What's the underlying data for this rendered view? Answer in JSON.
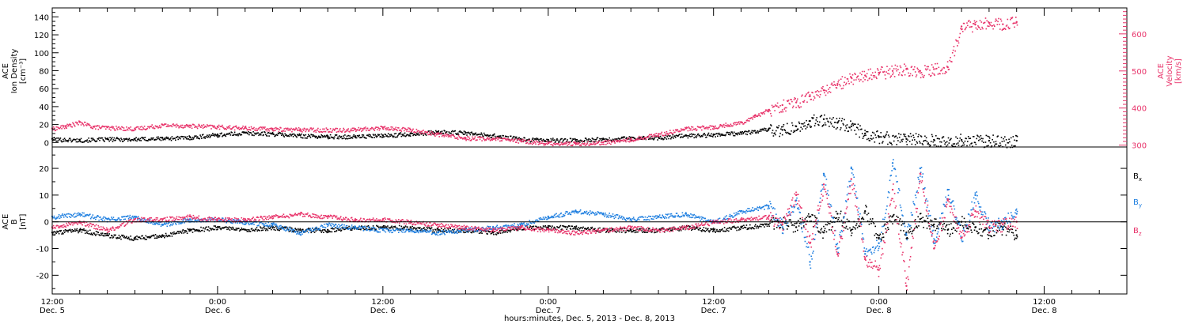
{
  "chart_data": [
    {
      "type": "scatter",
      "panel": "top",
      "ylabel_left_lines": [
        "ACE",
        "Ion Density",
        "[cm⁻³]"
      ],
      "ylabel_right_lines": [
        "ACE",
        "Velocity",
        "[km/s]"
      ],
      "ylim_left": [
        -5,
        150
      ],
      "ylim_right": [
        295,
        670
      ],
      "yticks_left": [
        0,
        20,
        40,
        60,
        80,
        100,
        120,
        140
      ],
      "yticks_right": [
        300,
        400,
        500,
        600
      ],
      "series": [
        {
          "axis": "left",
          "color": "#000000",
          "x": [
            0,
            2,
            4,
            6,
            8,
            10,
            12,
            14,
            16,
            18,
            20,
            22,
            24,
            26,
            28,
            30,
            32,
            34,
            36,
            38,
            40,
            42,
            44,
            46,
            48,
            50,
            51,
            52,
            53,
            54,
            55,
            56,
            57,
            58,
            59,
            60,
            62,
            64,
            66,
            68,
            70
          ],
          "y": [
            4,
            3,
            4,
            4,
            5,
            6,
            9,
            11,
            10,
            8,
            7,
            7,
            8,
            10,
            12,
            11,
            8,
            4,
            3,
            3,
            4,
            5,
            6,
            8,
            9,
            11,
            13,
            15,
            14,
            18,
            24,
            26,
            22,
            18,
            10,
            6,
            4,
            3,
            3,
            2,
            2
          ]
        },
        {
          "axis": "right",
          "color": "#e8336a",
          "x": [
            0,
            1,
            2,
            3,
            4,
            6,
            8,
            10,
            12,
            14,
            16,
            18,
            20,
            22,
            24,
            26,
            28,
            30,
            32,
            34,
            36,
            38,
            40,
            42,
            44,
            46,
            48,
            50,
            51,
            52,
            53,
            54,
            55,
            56,
            57,
            58,
            59,
            60,
            61,
            62,
            63,
            64,
            65,
            66,
            67,
            68,
            69,
            70
          ],
          "y": [
            345,
            352,
            362,
            350,
            348,
            345,
            355,
            353,
            350,
            347,
            344,
            343,
            342,
            343,
            348,
            342,
            330,
            320,
            318,
            312,
            306,
            305,
            308,
            316,
            330,
            345,
            350,
            362,
            380,
            395,
            408,
            415,
            432,
            448,
            465,
            482,
            488,
            495,
            500,
            505,
            500,
            505,
            510,
            620,
            625,
            630,
            626,
            632
          ]
        }
      ]
    },
    {
      "type": "scatter",
      "panel": "bottom",
      "ylabel_left_lines": [
        "ACE",
        "B",
        "[nT]"
      ],
      "ylim": [
        -27,
        28
      ],
      "yticks": [
        -20,
        -10,
        0,
        10,
        20
      ],
      "xlabel": "hours:minutes, Dec.  5, 2013 - Dec.  8, 2013",
      "xlim": [
        0,
        78
      ],
      "xticks": [
        {
          "x": 0,
          "line1": "12:00",
          "line2": "Dec. 5"
        },
        {
          "x": 12,
          "line1": "0:00",
          "line2": "Dec. 6"
        },
        {
          "x": 24,
          "line1": "12:00",
          "line2": "Dec. 6"
        },
        {
          "x": 36,
          "line1": "0:00",
          "line2": "Dec. 7"
        },
        {
          "x": 48,
          "line1": "12:00",
          "line2": "Dec. 7"
        },
        {
          "x": 60,
          "line1": "0:00",
          "line2": "Dec. 8"
        },
        {
          "x": 72,
          "line1": "12:00",
          "line2": "Dec. 8"
        }
      ],
      "series": [
        {
          "name": "B",
          "subscript": "x",
          "color": "#000000",
          "x": [
            0,
            2,
            4,
            6,
            8,
            10,
            12,
            14,
            16,
            18,
            20,
            22,
            24,
            26,
            28,
            30,
            32,
            34,
            36,
            38,
            40,
            42,
            44,
            46,
            48,
            50,
            52,
            53,
            54,
            55,
            56,
            57,
            58,
            59,
            60,
            61,
            62,
            63,
            64,
            65,
            66,
            67,
            68,
            69,
            70
          ],
          "y": [
            -4,
            -3,
            -5,
            -6,
            -5,
            -3,
            -2,
            -3,
            -2,
            -3,
            -3,
            -2,
            -2,
            -2,
            -3,
            -3,
            -4,
            -2,
            -2,
            -2,
            -3,
            -3,
            -3,
            -2,
            -3,
            -2,
            -1,
            0,
            -2,
            2,
            -4,
            3,
            -3,
            4,
            -6,
            2,
            -4,
            1,
            -1,
            -3,
            0,
            -2,
            -4,
            -2,
            -5
          ]
        },
        {
          "name": "B",
          "subscript": "y",
          "color": "#1f7fe0",
          "x": [
            0,
            2,
            4,
            6,
            8,
            10,
            12,
            14,
            16,
            18,
            20,
            22,
            24,
            26,
            28,
            30,
            32,
            34,
            36,
            38,
            40,
            42,
            44,
            46,
            48,
            50,
            52,
            53,
            54,
            55,
            56,
            57,
            58,
            59,
            60,
            61,
            62,
            63,
            64,
            65,
            66,
            67,
            68,
            69,
            70
          ],
          "y": [
            2,
            3,
            1,
            2,
            -1,
            1,
            1,
            0,
            -1,
            -4,
            -1,
            -2,
            -3,
            -3,
            -4,
            -3,
            -2,
            -1,
            2,
            4,
            3,
            1,
            2,
            3,
            0,
            4,
            6,
            -2,
            8,
            -15,
            18,
            -10,
            20,
            -12,
            -8,
            22,
            -5,
            20,
            -8,
            12,
            -6,
            10,
            -2,
            0,
            3
          ]
        },
        {
          "name": "B",
          "subscript": "z",
          "color": "#e8336a",
          "x": [
            0,
            2,
            4,
            6,
            8,
            10,
            12,
            14,
            16,
            18,
            20,
            22,
            24,
            26,
            28,
            30,
            32,
            34,
            36,
            38,
            40,
            42,
            44,
            46,
            48,
            50,
            52,
            53,
            54,
            55,
            56,
            57,
            58,
            59,
            60,
            61,
            62,
            63,
            64,
            65,
            66,
            67,
            68,
            69,
            70
          ],
          "y": [
            -2,
            0,
            -3,
            1,
            1,
            2,
            1,
            1,
            2,
            3,
            2,
            1,
            1,
            0,
            -1,
            -2,
            -3,
            -2,
            -3,
            -4,
            -3,
            -2,
            -3,
            -2,
            0,
            1,
            2,
            -1,
            10,
            -8,
            14,
            -12,
            16,
            -14,
            -18,
            12,
            -24,
            18,
            -10,
            8,
            -6,
            4,
            -2,
            -1,
            0
          ]
        }
      ]
    }
  ]
}
